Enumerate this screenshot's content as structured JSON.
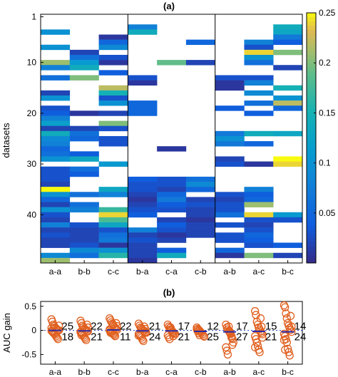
{
  "chart_data": [
    {
      "type": "heatmap",
      "panel_label": "(a)",
      "ylabel": "datasets",
      "columns": [
        "a-a",
        "b-b",
        "c-c",
        "b-a",
        "c-a",
        "c-b",
        "a-b",
        "a-c",
        "b-c"
      ],
      "group_dividers_after": [
        3,
        6
      ],
      "yticks": [
        1,
        10,
        20,
        30,
        40
      ],
      "ylim": [
        1,
        49
      ],
      "n_rows": 49,
      "colorbar": {
        "range": [
          0,
          0.25
        ],
        "ticks": [
          0.05,
          0.1,
          0.15,
          0.2,
          0.25
        ],
        "tick_labels": [
          "0.05",
          "0.1",
          "0.15",
          "0.2",
          "0.25"
        ],
        "colormap": "parula"
      },
      "cells": [
        [
          0,
          4,
          0.1
        ],
        [
          0,
          7,
          0.1
        ],
        [
          0,
          10,
          0.21
        ],
        [
          0,
          11,
          0.08
        ],
        [
          0,
          13,
          0.06
        ],
        [
          0,
          16,
          0.02
        ],
        [
          0,
          17,
          0.1
        ],
        [
          0,
          19,
          0.03
        ],
        [
          0,
          20,
          0.04
        ],
        [
          0,
          21,
          0.08
        ],
        [
          0,
          22,
          0.12
        ],
        [
          0,
          23,
          0.02
        ],
        [
          0,
          24,
          0.14
        ],
        [
          0,
          25,
          0.09
        ],
        [
          0,
          26,
          0.08
        ],
        [
          0,
          27,
          0.05
        ],
        [
          0,
          28,
          0.06
        ],
        [
          0,
          29,
          0.1
        ],
        [
          0,
          31,
          0.03
        ],
        [
          0,
          32,
          0.03
        ],
        [
          0,
          33,
          0.03
        ],
        [
          0,
          34,
          0.02
        ],
        [
          0,
          35,
          0.25
        ],
        [
          0,
          36,
          0.1
        ],
        [
          0,
          37,
          0.05
        ],
        [
          0,
          38,
          0.02
        ],
        [
          0,
          39,
          0.1
        ],
        [
          0,
          40,
          0.03
        ],
        [
          0,
          41,
          0.02
        ],
        [
          0,
          42,
          0.08
        ],
        [
          0,
          43,
          0.02
        ],
        [
          0,
          44,
          0.03
        ],
        [
          0,
          45,
          0.02
        ],
        [
          0,
          46,
          0.02
        ],
        [
          0,
          48,
          0.09
        ],
        [
          0,
          49,
          0.21
        ],
        [
          1,
          8,
          0.02
        ],
        [
          1,
          9,
          0.06
        ],
        [
          1,
          10,
          0.11
        ],
        [
          1,
          11,
          0.14
        ],
        [
          1,
          13,
          0.2
        ],
        [
          1,
          20,
          0.01
        ],
        [
          1,
          23,
          0.02
        ],
        [
          1,
          24,
          0.06
        ],
        [
          1,
          25,
          0.05
        ],
        [
          1,
          28,
          0.04
        ],
        [
          1,
          29,
          0.13
        ],
        [
          1,
          31,
          0.06
        ],
        [
          1,
          32,
          0.04
        ],
        [
          1,
          36,
          0.06
        ],
        [
          1,
          38,
          0.06
        ],
        [
          1,
          39,
          0.08
        ],
        [
          1,
          42,
          0.03
        ],
        [
          1,
          43,
          0.02
        ],
        [
          1,
          44,
          0.02
        ],
        [
          1,
          45,
          0.02
        ],
        [
          1,
          46,
          0.03
        ],
        [
          1,
          47,
          0.09
        ],
        [
          1,
          48,
          0.06
        ],
        [
          2,
          5,
          0.01
        ],
        [
          2,
          6,
          0.05
        ],
        [
          2,
          7,
          0.09
        ],
        [
          2,
          9,
          0.03
        ],
        [
          2,
          10,
          0.01
        ],
        [
          2,
          12,
          0.04
        ],
        [
          2,
          15,
          0.22
        ],
        [
          2,
          16,
          0.15
        ],
        [
          2,
          17,
          0.03
        ],
        [
          2,
          18,
          0.1
        ],
        [
          2,
          20,
          0.02
        ],
        [
          2,
          22,
          0.2
        ],
        [
          2,
          23,
          0.03
        ],
        [
          2,
          25,
          0.03
        ],
        [
          2,
          26,
          0.03
        ],
        [
          2,
          30,
          0.11
        ],
        [
          2,
          35,
          0.13
        ],
        [
          2,
          36,
          0.08
        ],
        [
          2,
          39,
          0.17
        ],
        [
          2,
          40,
          0.24
        ],
        [
          2,
          41,
          0.18
        ],
        [
          2,
          42,
          0.13
        ],
        [
          2,
          43,
          0.03
        ],
        [
          2,
          44,
          0.06
        ],
        [
          2,
          45,
          0.07
        ],
        [
          2,
          46,
          0.01
        ],
        [
          2,
          47,
          0.1
        ],
        [
          2,
          48,
          0.16
        ],
        [
          3,
          3,
          0.08
        ],
        [
          3,
          4,
          0.14
        ],
        [
          3,
          13,
          0.03
        ],
        [
          3,
          14,
          0.01
        ],
        [
          3,
          18,
          0.05
        ],
        [
          3,
          19,
          0.05
        ],
        [
          3,
          20,
          0.05
        ],
        [
          3,
          33,
          0.04
        ],
        [
          3,
          34,
          0.03
        ],
        [
          3,
          35,
          0.03
        ],
        [
          3,
          36,
          0.02
        ],
        [
          3,
          37,
          0.01
        ],
        [
          3,
          38,
          0.02
        ],
        [
          3,
          39,
          0.03
        ],
        [
          3,
          40,
          0.04
        ],
        [
          3,
          43,
          0.08
        ],
        [
          3,
          44,
          0.02
        ],
        [
          3,
          45,
          0.03
        ],
        [
          3,
          46,
          0.02
        ],
        [
          3,
          47,
          0.02
        ],
        [
          3,
          48,
          0.02
        ],
        [
          3,
          49,
          0.01
        ],
        [
          4,
          10,
          0.19
        ],
        [
          4,
          27,
          0.01
        ],
        [
          4,
          33,
          0.03
        ],
        [
          4,
          34,
          0.03
        ],
        [
          4,
          35,
          0.02
        ],
        [
          4,
          36,
          0.05
        ],
        [
          4,
          37,
          0.07
        ],
        [
          4,
          38,
          0.04
        ],
        [
          4,
          39,
          0.03
        ],
        [
          4,
          41,
          0.02
        ],
        [
          4,
          42,
          0.04
        ],
        [
          4,
          43,
          0.03
        ],
        [
          4,
          44,
          0.01
        ],
        [
          4,
          45,
          0.02
        ],
        [
          4,
          47,
          0.04
        ],
        [
          4,
          48,
          0.14
        ],
        [
          5,
          6,
          0.05
        ],
        [
          5,
          10,
          0.02
        ],
        [
          5,
          33,
          0.06
        ],
        [
          5,
          34,
          0.09
        ],
        [
          5,
          35,
          0.05
        ],
        [
          5,
          37,
          0.02
        ],
        [
          5,
          38,
          0.03
        ],
        [
          5,
          39,
          0.02
        ],
        [
          5,
          40,
          0.02
        ],
        [
          5,
          41,
          0.01
        ],
        [
          5,
          42,
          0.02
        ],
        [
          5,
          43,
          0.02
        ],
        [
          5,
          44,
          0.02
        ],
        [
          6,
          13,
          0.03
        ],
        [
          6,
          14,
          0.01
        ],
        [
          6,
          15,
          0.01
        ],
        [
          6,
          19,
          0.04
        ],
        [
          6,
          24,
          0.07
        ],
        [
          6,
          25,
          0.1
        ],
        [
          6,
          26,
          0.07
        ],
        [
          6,
          29,
          0.02
        ],
        [
          6,
          30,
          0.03
        ],
        [
          6,
          36,
          0.03
        ],
        [
          6,
          37,
          0.02
        ],
        [
          6,
          38,
          0.03
        ],
        [
          6,
          39,
          0.03
        ],
        [
          6,
          40,
          0.06
        ],
        [
          6,
          42,
          0.03
        ],
        [
          6,
          44,
          0.03
        ],
        [
          6,
          45,
          0.03
        ],
        [
          6,
          47,
          0.05
        ],
        [
          6,
          48,
          0.01
        ],
        [
          7,
          6,
          0.08
        ],
        [
          7,
          7,
          0.03
        ],
        [
          7,
          8,
          0.24
        ],
        [
          7,
          9,
          0.1
        ],
        [
          7,
          10,
          0.06
        ],
        [
          7,
          13,
          0.03
        ],
        [
          7,
          14,
          0.08
        ],
        [
          7,
          16,
          0.09
        ],
        [
          7,
          18,
          0.06
        ],
        [
          7,
          20,
          0.04
        ],
        [
          7,
          24,
          0.14
        ],
        [
          7,
          26,
          0.05
        ],
        [
          7,
          30,
          0.01
        ],
        [
          7,
          35,
          0.08
        ],
        [
          7,
          36,
          0.04
        ],
        [
          7,
          37,
          0.05
        ],
        [
          7,
          38,
          0.21
        ],
        [
          7,
          40,
          0.24
        ],
        [
          7,
          41,
          0.03
        ],
        [
          7,
          42,
          0.02
        ],
        [
          7,
          43,
          0.03
        ],
        [
          7,
          44,
          0.05
        ],
        [
          7,
          45,
          0.04
        ],
        [
          7,
          46,
          0.03
        ],
        [
          7,
          48,
          0.2
        ],
        [
          8,
          3,
          0.14
        ],
        [
          8,
          4,
          0.13
        ],
        [
          8,
          5,
          0.07
        ],
        [
          8,
          6,
          0.04
        ],
        [
          8,
          8,
          0.2
        ],
        [
          8,
          11,
          0.02
        ],
        [
          8,
          15,
          0.15
        ],
        [
          8,
          17,
          0.1
        ],
        [
          8,
          18,
          0.22
        ],
        [
          8,
          19,
          0.05
        ],
        [
          8,
          24,
          0.13
        ],
        [
          8,
          29,
          0.25
        ],
        [
          8,
          30,
          0.24
        ],
        [
          8,
          40,
          0.11
        ],
        [
          8,
          41,
          0.03
        ],
        [
          8,
          46,
          0.04
        ],
        [
          8,
          48,
          0.02
        ]
      ]
    },
    {
      "type": "scatter",
      "panel_label": "(b)",
      "ylabel": "AUC gain",
      "categories": [
        "a-a",
        "b-b",
        "c-c",
        "b-a",
        "c-a",
        "c-b",
        "a-b",
        "a-c",
        "b-c"
      ],
      "ylim": [
        -0.7,
        0.6
      ],
      "yticks": [
        -0.5,
        0,
        0.5
      ],
      "ytick_labels": [
        "-0.5",
        "0",
        "0.5"
      ],
      "reference_line": 0,
      "positive_counts": [
        25,
        22,
        22,
        21,
        17,
        12,
        17,
        15,
        14
      ],
      "negative_counts": [
        18,
        21,
        11,
        24,
        21,
        25,
        27,
        21,
        24
      ],
      "medians": [
        0.0,
        -0.01,
        0.01,
        -0.01,
        -0.01,
        -0.02,
        -0.03,
        -0.02,
        -0.03
      ],
      "points": [
        [
          0.23,
          0.18,
          0.12,
          0.09,
          0.06,
          0.04,
          0.02,
          0.01,
          0.0,
          -0.01,
          -0.03,
          -0.05,
          -0.07,
          -0.09,
          -0.12,
          -0.15,
          -0.18,
          0.1,
          0.05,
          -0.02
        ],
        [
          0.2,
          0.15,
          0.1,
          0.07,
          0.04,
          0.02,
          0.01,
          -0.01,
          -0.02,
          -0.04,
          -0.06,
          -0.08,
          -0.11,
          -0.14,
          -0.17,
          -0.2,
          0.12,
          0.06,
          -0.03,
          -0.1
        ],
        [
          0.25,
          0.21,
          0.17,
          0.14,
          0.11,
          0.08,
          0.05,
          0.03,
          0.01,
          0.0,
          -0.02,
          -0.04,
          -0.06,
          -0.08,
          -0.1,
          -0.12,
          0.15,
          0.09,
          0.02,
          -0.05
        ],
        [
          0.14,
          0.1,
          0.06,
          0.04,
          0.02,
          0.0,
          -0.01,
          -0.03,
          -0.05,
          -0.07,
          -0.09,
          -0.12,
          -0.15,
          -0.19,
          -0.22,
          0.08,
          0.03,
          -0.04,
          -0.11
        ],
        [
          0.12,
          0.08,
          0.05,
          0.02,
          0.0,
          -0.02,
          -0.04,
          -0.06,
          -0.08,
          -0.1,
          -0.14,
          -0.18,
          0.06,
          0.01,
          -0.05,
          -0.12
        ],
        [
          0.06,
          0.03,
          0.01,
          -0.01,
          -0.03,
          -0.05,
          -0.08,
          -0.11,
          -0.13,
          0.02,
          -0.02,
          -0.06,
          -0.1
        ],
        [
          0.12,
          0.06,
          0.02,
          -0.01,
          -0.04,
          -0.08,
          -0.12,
          -0.18,
          -0.25,
          -0.35,
          -0.42,
          -0.5,
          0.08,
          -0.02,
          -0.06,
          -0.15,
          -0.3
        ],
        [
          0.4,
          0.32,
          0.18,
          0.12,
          0.06,
          0.02,
          -0.02,
          -0.05,
          -0.08,
          -0.12,
          -0.18,
          -0.25,
          -0.32,
          -0.4,
          -0.45,
          0.25,
          0.08,
          -0.15,
          -0.35
        ],
        [
          0.52,
          0.48,
          0.35,
          0.25,
          0.15,
          0.1,
          0.05,
          0.01,
          -0.03,
          -0.07,
          -0.12,
          -0.18,
          -0.25,
          -0.38,
          -0.45,
          -0.52,
          0.3,
          0.08,
          -0.2,
          -0.4
        ]
      ]
    }
  ]
}
